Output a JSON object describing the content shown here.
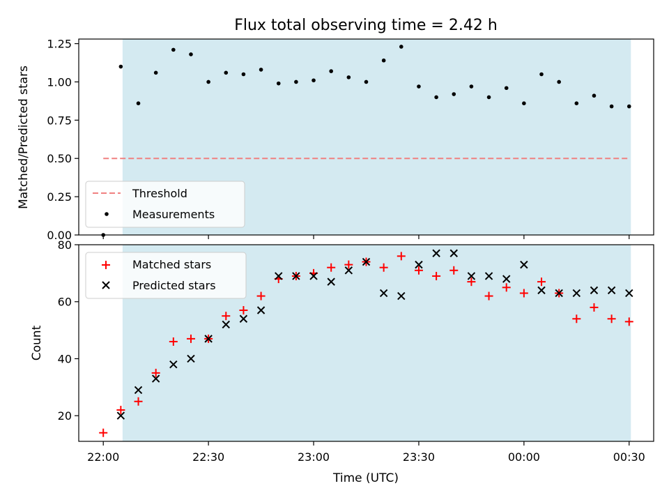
{
  "chart_data": [
    {
      "type": "scatter",
      "title": "Flux total observing time = 2.42 h",
      "ylabel": "Matched/Predicted stars",
      "xlabel": "",
      "ylim": [
        0,
        1.28
      ],
      "xlim": [
        "21:53",
        "00:37"
      ],
      "x_tick_labels": [
        "",
        "",
        "",
        "",
        "",
        ""
      ],
      "yticks": [
        "0.00",
        "0.25",
        "0.50",
        "0.75",
        "1.00",
        "1.25"
      ],
      "ytick_values": [
        0,
        0.25,
        0.5,
        0.75,
        1.0,
        1.25
      ],
      "shaded_span": [
        "22:05:30",
        "00:30:30"
      ],
      "shaded_color": "#d4eaf1",
      "threshold": {
        "name": "Threshold",
        "value": 0.5,
        "x_range": [
          "22:00",
          "00:30"
        ],
        "color": "#f08080"
      },
      "series": [
        {
          "name": "Measurements",
          "color": "#000000",
          "x": [
            "22:00",
            "22:05",
            "22:10",
            "22:15",
            "22:20",
            "22:25",
            "22:30",
            "22:35",
            "22:40",
            "22:45",
            "22:50",
            "22:55",
            "23:00",
            "23:05",
            "23:10",
            "23:15",
            "23:20",
            "23:25",
            "23:30",
            "23:35",
            "23:40",
            "23:45",
            "23:50",
            "23:55",
            "00:00",
            "00:05",
            "00:10",
            "00:15",
            "00:20",
            "00:25",
            "00:30"
          ],
          "values": [
            0.0,
            1.1,
            0.86,
            1.06,
            1.21,
            1.18,
            1.0,
            1.06,
            1.05,
            1.08,
            0.99,
            1.0,
            1.01,
            1.07,
            1.03,
            1.0,
            1.14,
            1.23,
            0.97,
            0.9,
            0.92,
            0.97,
            0.9,
            0.96,
            0.86,
            1.05,
            1.0,
            0.86,
            0.91,
            0.84,
            0.84
          ]
        }
      ],
      "legend": {
        "placement": "lower-left",
        "entries": [
          "Threshold",
          "Measurements"
        ]
      }
    },
    {
      "type": "scatter",
      "title": "",
      "ylabel": "Count",
      "xlabel": "Time (UTC)",
      "ylim": [
        11,
        80
      ],
      "xlim": [
        "21:53",
        "00:37"
      ],
      "x_tick_labels": [
        "22:00",
        "22:30",
        "23:00",
        "23:30",
        "00:00",
        "00:30"
      ],
      "yticks": [
        "20",
        "40",
        "60",
        "80"
      ],
      "ytick_values": [
        20,
        40,
        60,
        80
      ],
      "shaded_span": [
        "22:05:30",
        "00:30:30"
      ],
      "shaded_color": "#d4eaf1",
      "series": [
        {
          "name": "Matched stars",
          "marker": "+",
          "color": "#ff0000",
          "x": [
            "22:00",
            "22:05",
            "22:10",
            "22:15",
            "22:20",
            "22:25",
            "22:30",
            "22:35",
            "22:40",
            "22:45",
            "22:50",
            "22:55",
            "23:00",
            "23:05",
            "23:10",
            "23:15",
            "23:20",
            "23:25",
            "23:30",
            "23:35",
            "23:40",
            "23:45",
            "23:50",
            "23:55",
            "00:00",
            "00:05",
            "00:10",
            "00:15",
            "00:20",
            "00:25",
            "00:30"
          ],
          "values": [
            14,
            22,
            25,
            35,
            46,
            47,
            47,
            55,
            57,
            62,
            68,
            69,
            70,
            72,
            73,
            74,
            72,
            76,
            71,
            69,
            71,
            67,
            62,
            65,
            63,
            67,
            63,
            54,
            58,
            54,
            53
          ]
        },
        {
          "name": "Predicted stars",
          "marker": "x",
          "color": "#000000",
          "x": [
            "22:05",
            "22:10",
            "22:15",
            "22:20",
            "22:25",
            "22:30",
            "22:35",
            "22:40",
            "22:45",
            "22:50",
            "22:55",
            "23:00",
            "23:05",
            "23:10",
            "23:15",
            "23:20",
            "23:25",
            "23:30",
            "23:35",
            "23:40",
            "23:45",
            "23:50",
            "23:55",
            "00:00",
            "00:05",
            "00:10",
            "00:15",
            "00:20",
            "00:25",
            "00:30"
          ],
          "values": [
            20,
            29,
            33,
            38,
            40,
            47,
            52,
            54,
            57,
            69,
            69,
            69,
            67,
            71,
            74,
            63,
            62,
            73,
            77,
            77,
            69,
            69,
            68,
            73,
            64,
            63,
            63,
            64,
            64,
            63
          ]
        }
      ],
      "legend": {
        "placement": "upper-left",
        "entries": [
          "Matched stars",
          "Predicted stars"
        ]
      }
    }
  ]
}
